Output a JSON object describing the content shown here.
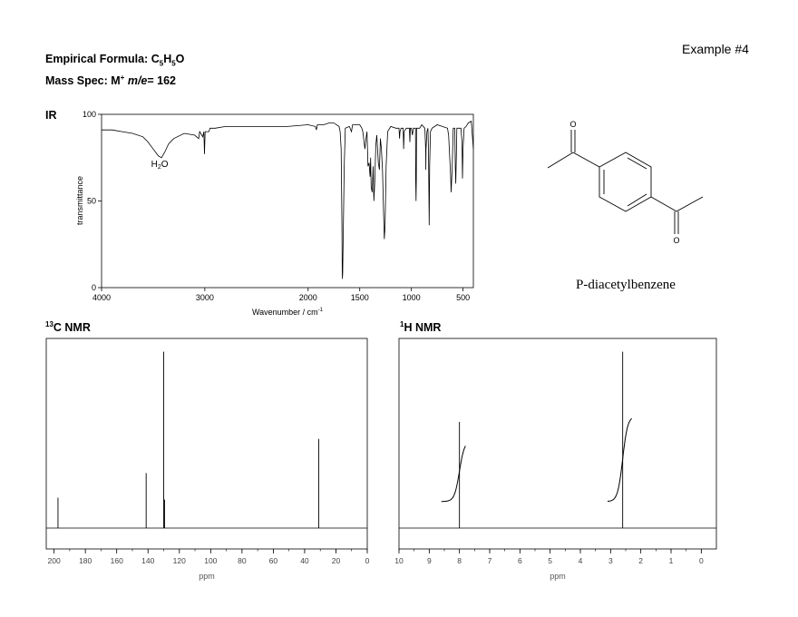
{
  "example_label": "Example #4",
  "formula": {
    "label": "Empirical Formula: ",
    "C": "C",
    "c_sub": "5",
    "H": "H",
    "h_sub": "5",
    "O": "O"
  },
  "mass_spec": {
    "label": "Mass Spec: M",
    "sup": "+",
    "me": "m/e",
    "value": "= 162"
  },
  "compound_name": "P-diacetylbenzene",
  "structure_atoms": {
    "o_top": "O",
    "o_bottom": "O"
  },
  "chart_data": [
    {
      "type": "line",
      "title": "IR",
      "xlabel": "Wavenumber / cm",
      "xlabel_sup": "-1",
      "ylabel": "transmittance",
      "xlim": [
        4000,
        400
      ],
      "ylim": [
        0,
        100
      ],
      "x_ticks": [
        4000,
        3000,
        2000,
        1500,
        1000,
        500
      ],
      "y_ticks": [
        0,
        50,
        100
      ],
      "annotation": {
        "text": "H",
        "sub": "2",
        "text2": "O",
        "x": 3450,
        "y": 76
      },
      "points": [
        [
          4000,
          91
        ],
        [
          3900,
          91
        ],
        [
          3800,
          90
        ],
        [
          3700,
          89
        ],
        [
          3600,
          87
        ],
        [
          3550,
          84
        ],
        [
          3500,
          80
        ],
        [
          3450,
          76
        ],
        [
          3420,
          75
        ],
        [
          3390,
          78
        ],
        [
          3350,
          83
        ],
        [
          3300,
          86
        ],
        [
          3200,
          89
        ],
        [
          3100,
          88
        ],
        [
          3060,
          86
        ],
        [
          3050,
          90
        ],
        [
          3020,
          87
        ],
        [
          3010,
          90
        ],
        [
          3003,
          77
        ],
        [
          2997,
          90
        ],
        [
          2960,
          90
        ],
        [
          2950,
          92
        ],
        [
          2900,
          92
        ],
        [
          2800,
          93
        ],
        [
          2600,
          93
        ],
        [
          2400,
          93
        ],
        [
          2200,
          93
        ],
        [
          2000,
          94
        ],
        [
          1930,
          93
        ],
        [
          1920,
          91
        ],
        [
          1910,
          94
        ],
        [
          1850,
          94
        ],
        [
          1800,
          95
        ],
        [
          1750,
          95
        ],
        [
          1700,
          93
        ],
        [
          1690,
          90
        ],
        [
          1680,
          80
        ],
        [
          1673,
          40
        ],
        [
          1670,
          10
        ],
        [
          1668,
          5
        ],
        [
          1665,
          8
        ],
        [
          1660,
          30
        ],
        [
          1650,
          70
        ],
        [
          1640,
          92
        ],
        [
          1600,
          93
        ],
        [
          1580,
          90
        ],
        [
          1570,
          94
        ],
        [
          1500,
          94
        ],
        [
          1480,
          92
        ],
        [
          1470,
          90
        ],
        [
          1450,
          80
        ],
        [
          1440,
          86
        ],
        [
          1430,
          90
        ],
        [
          1420,
          70
        ],
        [
          1410,
          72
        ],
        [
          1400,
          64
        ],
        [
          1395,
          75
        ],
        [
          1390,
          58
        ],
        [
          1380,
          55
        ],
        [
          1370,
          70
        ],
        [
          1363,
          50
        ],
        [
          1355,
          60
        ],
        [
          1345,
          82
        ],
        [
          1335,
          88
        ],
        [
          1320,
          72
        ],
        [
          1310,
          68
        ],
        [
          1300,
          86
        ],
        [
          1290,
          80
        ],
        [
          1280,
          68
        ],
        [
          1270,
          45
        ],
        [
          1262,
          28
        ],
        [
          1255,
          35
        ],
        [
          1245,
          70
        ],
        [
          1230,
          90
        ],
        [
          1200,
          93
        ],
        [
          1150,
          92
        ],
        [
          1120,
          92
        ],
        [
          1115,
          86
        ],
        [
          1110,
          90
        ],
        [
          1100,
          92
        ],
        [
          1080,
          92
        ],
        [
          1075,
          80
        ],
        [
          1070,
          90
        ],
        [
          1050,
          92
        ],
        [
          1020,
          92
        ],
        [
          1015,
          84
        ],
        [
          1010,
          92
        ],
        [
          1000,
          92
        ],
        [
          990,
          88
        ],
        [
          980,
          92
        ],
        [
          960,
          92
        ],
        [
          958,
          62
        ],
        [
          955,
          50
        ],
        [
          952,
          62
        ],
        [
          950,
          92
        ],
        [
          920,
          92
        ],
        [
          900,
          94
        ],
        [
          870,
          92
        ],
        [
          862,
          80
        ],
        [
          860,
          68
        ],
        [
          858,
          80
        ],
        [
          850,
          90
        ],
        [
          840,
          92
        ],
        [
          835,
          80
        ],
        [
          828,
          36
        ],
        [
          823,
          70
        ],
        [
          815,
          90
        ],
        [
          800,
          92
        ],
        [
          750,
          94
        ],
        [
          700,
          93
        ],
        [
          650,
          92
        ],
        [
          640,
          88
        ],
        [
          620,
          65
        ],
        [
          615,
          55
        ],
        [
          605,
          70
        ],
        [
          595,
          92
        ],
        [
          580,
          92
        ],
        [
          575,
          70
        ],
        [
          570,
          60
        ],
        [
          565,
          75
        ],
        [
          560,
          92
        ],
        [
          520,
          92
        ],
        [
          510,
          84
        ],
        [
          505,
          63
        ],
        [
          500,
          80
        ],
        [
          490,
          92
        ],
        [
          470,
          93
        ],
        [
          450,
          95
        ],
        [
          420,
          96
        ],
        [
          400,
          80
        ]
      ]
    },
    {
      "type": "line",
      "title": "C NMR",
      "title_sup": "13",
      "xlabel": "ppm",
      "xlim": [
        205,
        0
      ],
      "x_ticks": [
        200,
        180,
        160,
        140,
        120,
        100,
        80,
        60,
        40,
        20,
        0
      ],
      "peaks": [
        {
          "ppm": 197.5,
          "height": 0.16
        },
        {
          "ppm": 141.2,
          "height": 0.29
        },
        {
          "ppm": 130.0,
          "height": 0.93
        },
        {
          "ppm": 129.4,
          "height": 0.15
        },
        {
          "ppm": 31.0,
          "height": 0.47
        }
      ]
    },
    {
      "type": "line",
      "title": "H NMR",
      "title_sup": "1",
      "xlabel": "ppm",
      "xlim": [
        10,
        -0.5
      ],
      "x_ticks": [
        10,
        9,
        8,
        7,
        6,
        5,
        4,
        3,
        2,
        1,
        0
      ],
      "peaks": [
        {
          "ppm": 8.0,
          "height": 0.56
        },
        {
          "ppm": 2.6,
          "height": 0.93
        }
      ],
      "integrals": [
        {
          "from": 8.6,
          "to": 7.8,
          "center": 8.0,
          "low": 0.14,
          "high": 0.46
        },
        {
          "from": 3.1,
          "to": 2.3,
          "center": 2.6,
          "low": 0.14,
          "high": 0.59
        }
      ]
    }
  ]
}
